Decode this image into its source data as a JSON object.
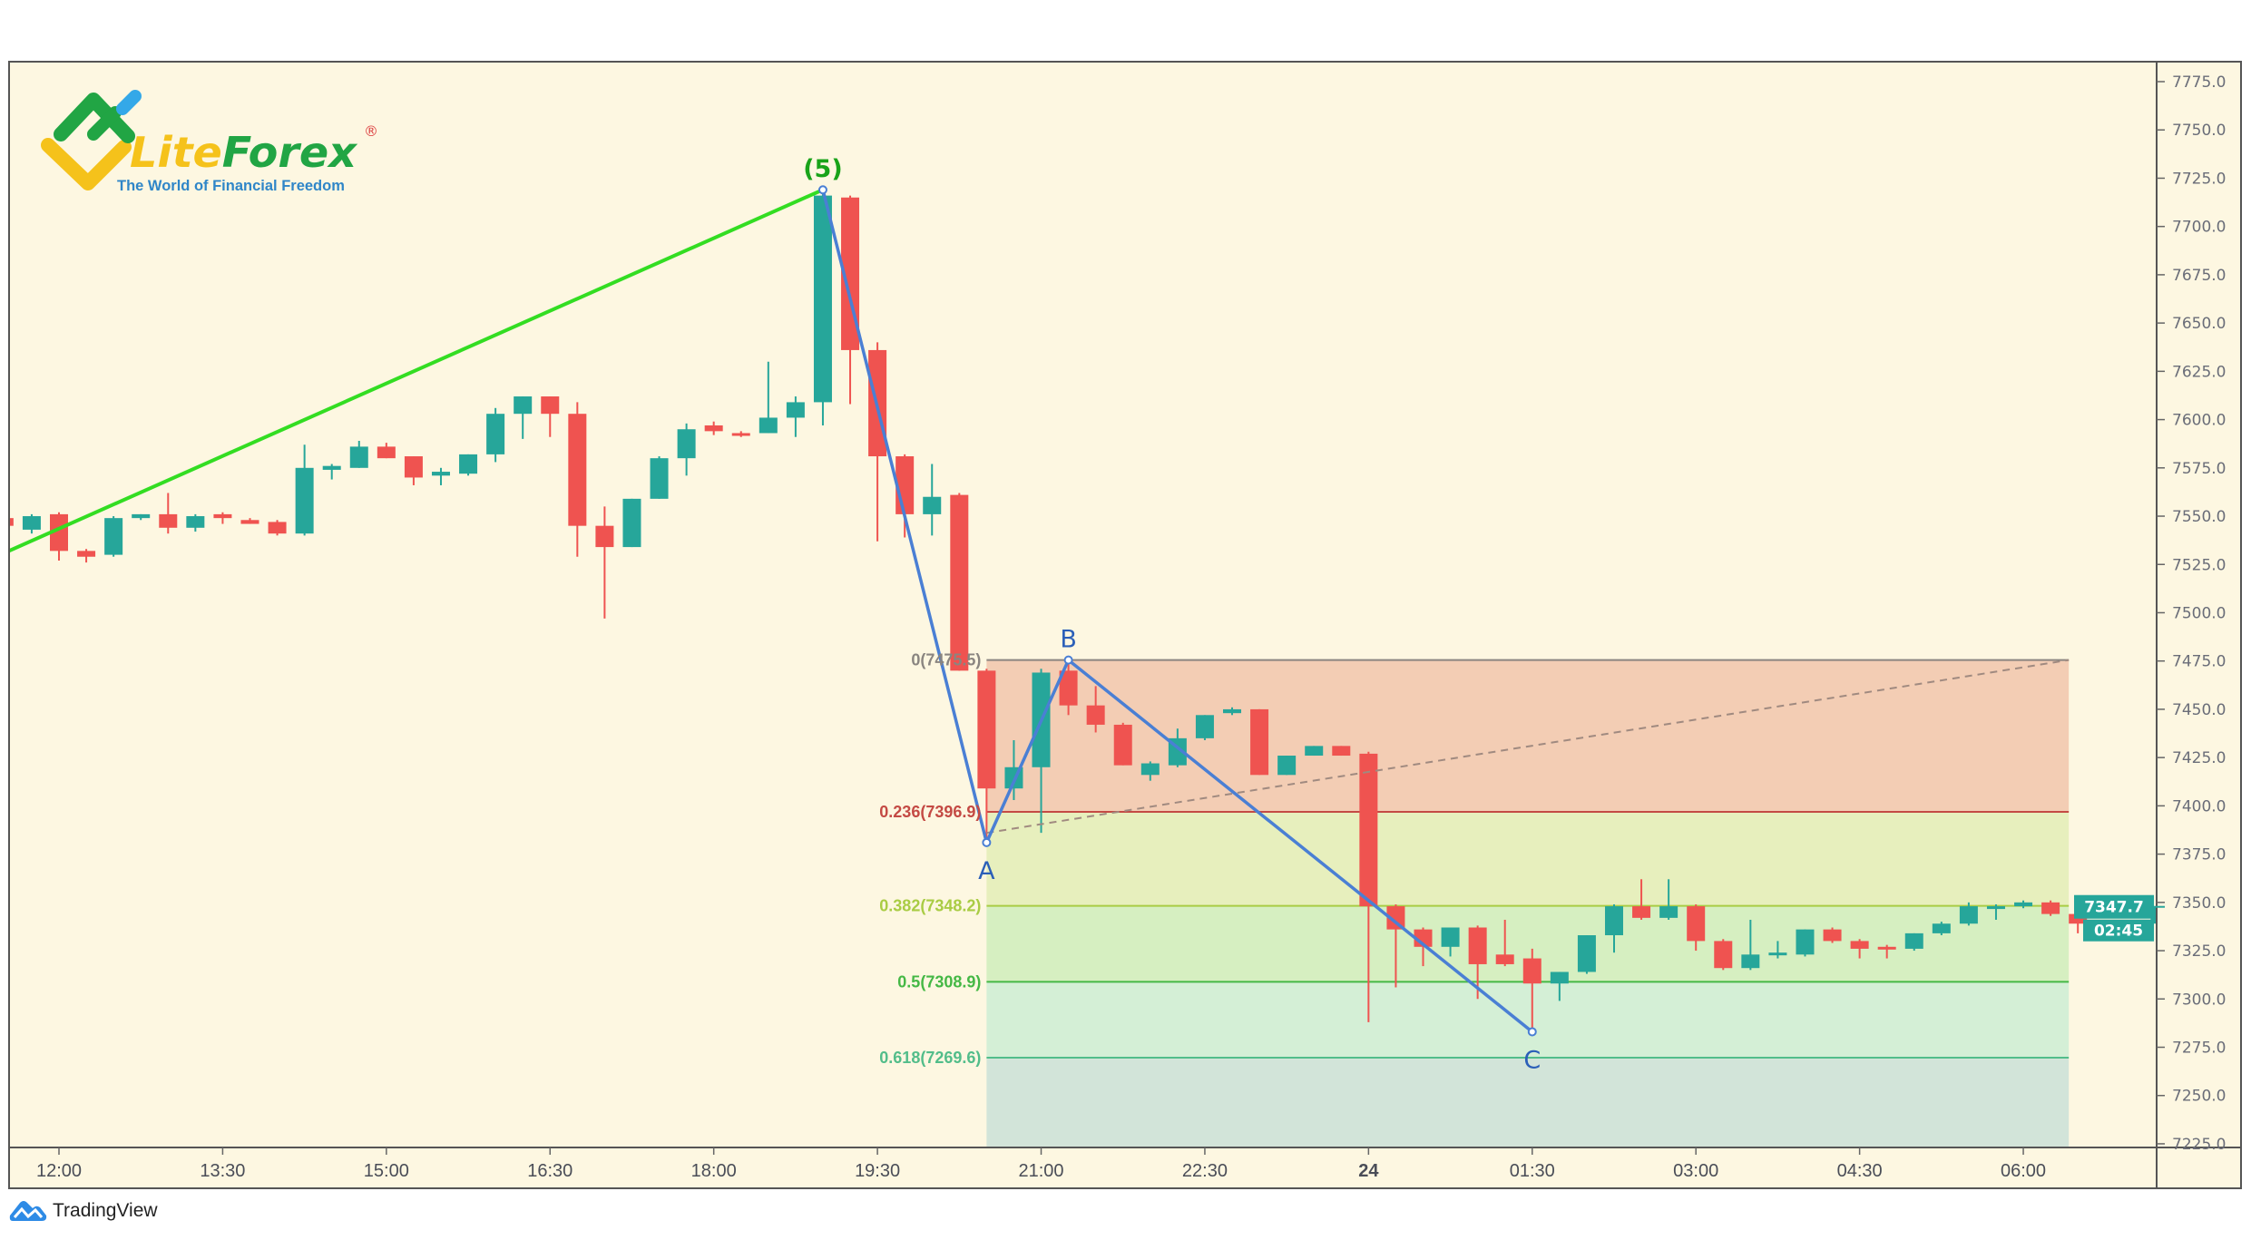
{
  "logo": {
    "part1": "Lite",
    "part2": "Forex",
    "registered": "®",
    "tagline": "The World of Financial Freedom"
  },
  "footer": {
    "brand": "TradingView",
    "icon": "tradingview-cloud-icon"
  },
  "colors": {
    "background": "#fdf7e1",
    "up": "#26a69a",
    "down": "#ef5350",
    "wave": "#4a7fd4",
    "impulse": "#33dd22"
  },
  "chart_data": {
    "type": "candlestick",
    "interval_minutes": 15,
    "ylim": [
      7225,
      7775
    ],
    "y_ticks": [
      "7775.0",
      "7750.0",
      "7725.0",
      "7700.0",
      "7675.0",
      "7650.0",
      "7625.0",
      "7600.0",
      "7575.0",
      "7550.0",
      "7525.0",
      "7500.0",
      "7475.0",
      "7450.0",
      "7425.0",
      "7400.0",
      "7375.0",
      "7350.0",
      "7325.0",
      "7300.0",
      "7275.0",
      "7250.0",
      "7225.0"
    ],
    "x_ticks": [
      {
        "t": "23 12:00",
        "label": "12:00"
      },
      {
        "t": "23 13:30",
        "label": "13:30"
      },
      {
        "t": "23 15:00",
        "label": "15:00"
      },
      {
        "t": "23 16:30",
        "label": "16:30"
      },
      {
        "t": "23 18:00",
        "label": "18:00"
      },
      {
        "t": "23 19:30",
        "label": "19:30"
      },
      {
        "t": "23 21:00",
        "label": "21:00"
      },
      {
        "t": "23 22:30",
        "label": "22:30"
      },
      {
        "t": "24 00:00",
        "label": "24"
      },
      {
        "t": "24 01:30",
        "label": "01:30"
      },
      {
        "t": "24 03:00",
        "label": "03:00"
      },
      {
        "t": "24 04:30",
        "label": "04:30"
      },
      {
        "t": "24 06:00",
        "label": "06:00"
      }
    ],
    "last_price": {
      "value": "7347.7",
      "countdown": "02:45"
    },
    "candles": [
      {
        "t": "23 11:30",
        "o": 7549,
        "h": 7550,
        "l": 7544,
        "c": 7545
      },
      {
        "t": "23 11:45",
        "o": 7543,
        "h": 7551,
        "l": 7541,
        "c": 7550
      },
      {
        "t": "23 12:00",
        "o": 7551,
        "h": 7552,
        "l": 7527,
        "c": 7532
      },
      {
        "t": "23 12:15",
        "o": 7532,
        "h": 7533,
        "l": 7526,
        "c": 7529
      },
      {
        "t": "23 12:30",
        "o": 7530,
        "h": 7550,
        "l": 7529,
        "c": 7549
      },
      {
        "t": "23 12:45",
        "o": 7549,
        "h": 7551,
        "l": 7548,
        "c": 7551
      },
      {
        "t": "23 13:00",
        "o": 7551,
        "h": 7562,
        "l": 7541,
        "c": 7544
      },
      {
        "t": "23 13:15",
        "o": 7544,
        "h": 7551,
        "l": 7542,
        "c": 7550
      },
      {
        "t": "23 13:30",
        "o": 7551,
        "h": 7552,
        "l": 7546,
        "c": 7549
      },
      {
        "t": "23 13:45",
        "o": 7548,
        "h": 7549,
        "l": 7546,
        "c": 7546
      },
      {
        "t": "23 14:00",
        "o": 7547,
        "h": 7548,
        "l": 7540,
        "c": 7541
      },
      {
        "t": "23 14:15",
        "o": 7541,
        "h": 7587,
        "l": 7540,
        "c": 7575
      },
      {
        "t": "23 14:30",
        "o": 7574,
        "h": 7577,
        "l": 7569,
        "c": 7576
      },
      {
        "t": "23 14:45",
        "o": 7575,
        "h": 7589,
        "l": 7575,
        "c": 7586
      },
      {
        "t": "23 15:00",
        "o": 7586,
        "h": 7588,
        "l": 7580,
        "c": 7580
      },
      {
        "t": "23 15:15",
        "o": 7581,
        "h": 7581,
        "l": 7566,
        "c": 7570
      },
      {
        "t": "23 15:30",
        "o": 7571,
        "h": 7575,
        "l": 7566,
        "c": 7573
      },
      {
        "t": "23 15:45",
        "o": 7572,
        "h": 7582,
        "l": 7571,
        "c": 7582
      },
      {
        "t": "23 16:00",
        "o": 7582,
        "h": 7606,
        "l": 7578,
        "c": 7603
      },
      {
        "t": "23 16:15",
        "o": 7603,
        "h": 7612,
        "l": 7590,
        "c": 7612
      },
      {
        "t": "23 16:30",
        "o": 7612,
        "h": 7612,
        "l": 7591,
        "c": 7603
      },
      {
        "t": "23 16:45",
        "o": 7603,
        "h": 7609,
        "l": 7529,
        "c": 7545
      },
      {
        "t": "23 17:00",
        "o": 7545,
        "h": 7555,
        "l": 7497,
        "c": 7534
      },
      {
        "t": "23 17:15",
        "o": 7534,
        "h": 7559,
        "l": 7534,
        "c": 7559
      },
      {
        "t": "23 17:30",
        "o": 7559,
        "h": 7581,
        "l": 7559,
        "c": 7580
      },
      {
        "t": "23 17:45",
        "o": 7580,
        "h": 7598,
        "l": 7571,
        "c": 7595
      },
      {
        "t": "23 18:00",
        "o": 7597,
        "h": 7599,
        "l": 7592,
        "c": 7594
      },
      {
        "t": "23 18:15",
        "o": 7593,
        "h": 7594,
        "l": 7591,
        "c": 7592
      },
      {
        "t": "23 18:30",
        "o": 7593,
        "h": 7630,
        "l": 7593,
        "c": 7601
      },
      {
        "t": "23 18:45",
        "o": 7601,
        "h": 7612,
        "l": 7591,
        "c": 7609
      },
      {
        "t": "23 19:00",
        "o": 7609,
        "h": 7719,
        "l": 7597,
        "c": 7716
      },
      {
        "t": "23 19:15",
        "o": 7715,
        "h": 7716,
        "l": 7608,
        "c": 7636
      },
      {
        "t": "23 19:30",
        "o": 7636,
        "h": 7640,
        "l": 7537,
        "c": 7581
      },
      {
        "t": "23 19:45",
        "o": 7581,
        "h": 7582,
        "l": 7539,
        "c": 7551
      },
      {
        "t": "23 20:00",
        "o": 7551,
        "h": 7577,
        "l": 7540,
        "c": 7560
      },
      {
        "t": "23 20:15",
        "o": 7561,
        "h": 7562,
        "l": 7470,
        "c": 7470
      },
      {
        "t": "23 20:30",
        "o": 7470,
        "h": 7471,
        "l": 7380,
        "c": 7409
      },
      {
        "t": "23 20:45",
        "o": 7409,
        "h": 7434,
        "l": 7403,
        "c": 7420
      },
      {
        "t": "23 21:00",
        "o": 7420,
        "h": 7471,
        "l": 7386,
        "c": 7469
      },
      {
        "t": "23 21:15",
        "o": 7470,
        "h": 7476,
        "l": 7447,
        "c": 7452
      },
      {
        "t": "23 21:30",
        "o": 7452,
        "h": 7462,
        "l": 7438,
        "c": 7442
      },
      {
        "t": "23 21:45",
        "o": 7442,
        "h": 7443,
        "l": 7421,
        "c": 7421
      },
      {
        "t": "23 22:00",
        "o": 7416,
        "h": 7423,
        "l": 7413,
        "c": 7422
      },
      {
        "t": "23 22:15",
        "o": 7421,
        "h": 7440,
        "l": 7420,
        "c": 7435
      },
      {
        "t": "23 22:30",
        "o": 7435,
        "h": 7447,
        "l": 7434,
        "c": 7447
      },
      {
        "t": "23 22:45",
        "o": 7448,
        "h": 7451,
        "l": 7447,
        "c": 7450
      },
      {
        "t": "23 23:00",
        "o": 7450,
        "h": 7450,
        "l": 7416,
        "c": 7416
      },
      {
        "t": "23 23:15",
        "o": 7416,
        "h": 7426,
        "l": 7416,
        "c": 7426
      },
      {
        "t": "23 23:30",
        "o": 7426,
        "h": 7431,
        "l": 7426,
        "c": 7431
      },
      {
        "t": "23 23:45",
        "o": 7431,
        "h": 7431,
        "l": 7426,
        "c": 7426
      },
      {
        "t": "24 00:00",
        "o": 7427,
        "h": 7428,
        "l": 7288,
        "c": 7348
      },
      {
        "t": "24 00:15",
        "o": 7348,
        "h": 7349,
        "l": 7306,
        "c": 7336
      },
      {
        "t": "24 00:30",
        "o": 7336,
        "h": 7337,
        "l": 7317,
        "c": 7327
      },
      {
        "t": "24 00:45",
        "o": 7327,
        "h": 7337,
        "l": 7322,
        "c": 7337
      },
      {
        "t": "24 01:00",
        "o": 7337,
        "h": 7338,
        "l": 7300,
        "c": 7318
      },
      {
        "t": "24 01:15",
        "o": 7323,
        "h": 7341,
        "l": 7317,
        "c": 7318
      },
      {
        "t": "24 01:30",
        "o": 7321,
        "h": 7326,
        "l": 7284,
        "c": 7308
      },
      {
        "t": "24 01:45",
        "o": 7308,
        "h": 7314,
        "l": 7299,
        "c": 7314
      },
      {
        "t": "24 02:00",
        "o": 7314,
        "h": 7333,
        "l": 7313,
        "c": 7333
      },
      {
        "t": "24 02:15",
        "o": 7333,
        "h": 7349,
        "l": 7324,
        "c": 7348
      },
      {
        "t": "24 02:30",
        "o": 7348,
        "h": 7362,
        "l": 7341,
        "c": 7342
      },
      {
        "t": "24 02:45",
        "o": 7342,
        "h": 7362,
        "l": 7341,
        "c": 7348
      },
      {
        "t": "24 03:00",
        "o": 7348,
        "h": 7349,
        "l": 7325,
        "c": 7330
      },
      {
        "t": "24 03:15",
        "o": 7330,
        "h": 7331,
        "l": 7315,
        "c": 7316
      },
      {
        "t": "24 03:30",
        "o": 7316,
        "h": 7341,
        "l": 7315,
        "c": 7323
      },
      {
        "t": "24 03:45",
        "o": 7323,
        "h": 7330,
        "l": 7321,
        "c": 7324
      },
      {
        "t": "24 04:00",
        "o": 7323,
        "h": 7336,
        "l": 7322,
        "c": 7336
      },
      {
        "t": "24 04:15",
        "o": 7336,
        "h": 7337,
        "l": 7329,
        "c": 7330
      },
      {
        "t": "24 04:30",
        "o": 7330,
        "h": 7331,
        "l": 7321,
        "c": 7326
      },
      {
        "t": "24 04:45",
        "o": 7327,
        "h": 7328,
        "l": 7321,
        "c": 7326
      },
      {
        "t": "24 05:00",
        "o": 7326,
        "h": 7334,
        "l": 7325,
        "c": 7334
      },
      {
        "t": "24 05:15",
        "o": 7334,
        "h": 7340,
        "l": 7333,
        "c": 7339
      },
      {
        "t": "24 05:30",
        "o": 7339,
        "h": 7350,
        "l": 7338,
        "c": 7348
      },
      {
        "t": "24 05:45",
        "o": 7347,
        "h": 7349,
        "l": 7341,
        "c": 7348
      },
      {
        "t": "24 06:00",
        "o": 7348,
        "h": 7351,
        "l": 7347,
        "c": 7350
      },
      {
        "t": "24 06:15",
        "o": 7350,
        "h": 7351,
        "l": 7343,
        "c": 7344
      },
      {
        "t": "24 06:30",
        "o": 7344,
        "h": 7345,
        "l": 7334,
        "c": 7339
      },
      {
        "t": "24 06:45",
        "o": 7339,
        "h": 7340,
        "l": 7336,
        "c": 7337
      },
      {
        "t": "24 07:00",
        "o": 7337,
        "h": 7340,
        "l": 7336,
        "c": 7339
      },
      {
        "t": "24 07:15",
        "o": 7339,
        "h": 7348,
        "l": 7338,
        "c": 7347.7
      }
    ],
    "impulse_line": {
      "from": {
        "t": "23 11:30",
        "p": 7531
      },
      "to": {
        "t": "23 19:00",
        "p": 7719
      },
      "label": "(5)"
    },
    "abc_wave": [
      {
        "t": "23 19:00",
        "p": 7719,
        "label": ""
      },
      {
        "t": "23 20:30",
        "p": 7381,
        "label": "A"
      },
      {
        "t": "23 21:15",
        "p": 7475.5,
        "label": "B"
      },
      {
        "t": "24 01:30",
        "p": 7283,
        "label": "C"
      }
    ],
    "trend_line": {
      "from": {
        "t": "23 20:30",
        "p": 7386
      },
      "to": {
        "t": "24 06:25",
        "p": 7475.5
      }
    },
    "fibonacci": {
      "from_t": "23 20:30",
      "to_t": "24 06:25",
      "levels": [
        {
          "ratio": "0",
          "price": 7475.5,
          "label": "0(7475.5)",
          "color": "#8a8580",
          "zone": "#f3cdb4"
        },
        {
          "ratio": "0.236",
          "price": 7396.9,
          "label": "0.236(7396.9)",
          "color": "#c44a44",
          "zone": "#e7efbd"
        },
        {
          "ratio": "0.382",
          "price": 7348.2,
          "label": "0.382(7348.2)",
          "color": "#a9cc44",
          "zone": "#d6efc1"
        },
        {
          "ratio": "0.5",
          "price": 7308.9,
          "label": "0.5(7308.9)",
          "color": "#45b845",
          "zone": "#d4efd6"
        },
        {
          "ratio": "0.618",
          "price": 7269.6,
          "label": "0.618(7269.6)",
          "color": "#52bd8a",
          "zone": "#d2e4d9"
        }
      ]
    }
  }
}
